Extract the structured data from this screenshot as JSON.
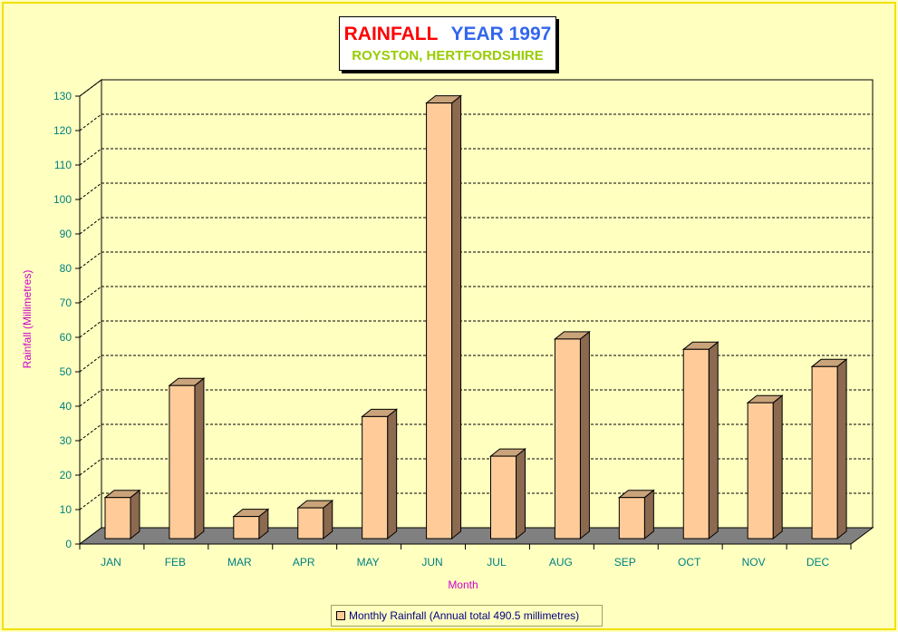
{
  "chart_data": {
    "type": "bar",
    "title": "RAINFALL",
    "title_year": "YEAR 1997",
    "subtitle": "ROYSTON, HERTFORDSHIRE",
    "xlabel": "Month",
    "ylabel": "Rainfall  (Millimetres)",
    "categories": [
      "JAN",
      "FEB",
      "MAR",
      "APR",
      "MAY",
      "JUN",
      "JUL",
      "AUG",
      "SEP",
      "OCT",
      "NOV",
      "DEC"
    ],
    "series": [
      {
        "name": "Monthly Rainfall (Annual total 490.5 millimetres)",
        "values": [
          13.5,
          46,
          8,
          10.5,
          37,
          128,
          25.5,
          59.5,
          13.5,
          56.5,
          41,
          51.5
        ]
      }
    ],
    "ylim": [
      0,
      130
    ],
    "yticks": [
      0,
      10,
      20,
      30,
      40,
      50,
      60,
      70,
      80,
      90,
      100,
      110,
      120,
      130
    ],
    "grid": true,
    "legend_position": "bottom"
  },
  "colors": {
    "background": "#ffffc0",
    "bar_front": "#ffcc99",
    "bar_side": "#8b6a50",
    "floor": "#808080",
    "tick_label": "#008080",
    "axis_title": "#cc00cc",
    "legend_text": "#000080"
  }
}
